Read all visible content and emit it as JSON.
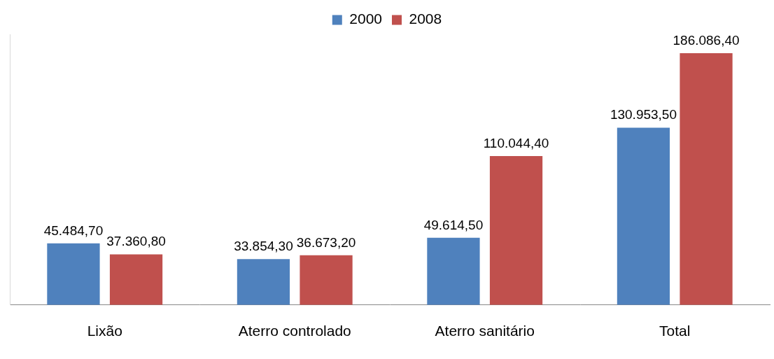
{
  "chart_data": {
    "type": "bar",
    "categories": [
      "Lixão",
      "Aterro controlado",
      "Aterro sanitário",
      "Total"
    ],
    "series": [
      {
        "name": "2000",
        "color": "#4f81bd",
        "values": [
          45484.7,
          33854.3,
          49614.5,
          130953.5
        ],
        "value_labels": [
          "45.484,70",
          "33.854,30",
          "49.614,50",
          "130.953,50"
        ]
      },
      {
        "name": "2008",
        "color": "#c0504d",
        "values": [
          37360.8,
          36673.2,
          110044.4,
          186086.4
        ],
        "value_labels": [
          "37.360,80",
          "36.673,20",
          "110.044,40",
          "186.086,40"
        ]
      }
    ],
    "ylim": [
      0,
      200000
    ],
    "yticks": [],
    "grid": false,
    "legend": "top",
    "data_labels": true,
    "tick_labels": "x"
  }
}
